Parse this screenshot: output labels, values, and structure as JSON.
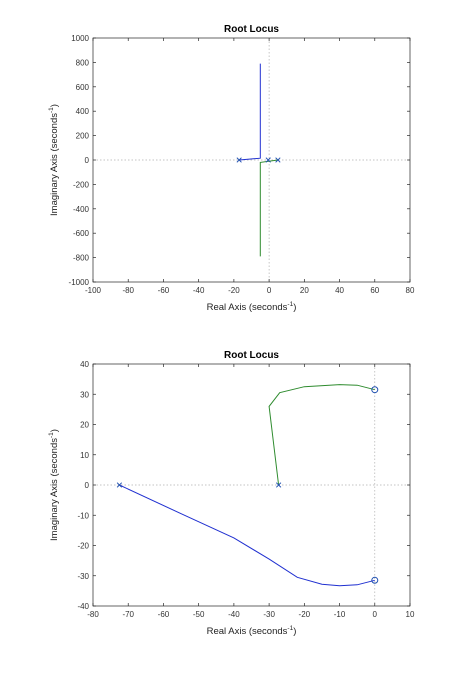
{
  "chart_data": [
    {
      "type": "line",
      "title": "Root Locus",
      "xlabel": "Real Axis (seconds",
      "ylabel": "Imaginary Axis (seconds",
      "label_exponent": "-1",
      "xlim": [
        -100,
        80
      ],
      "ylim": [
        -1000,
        1000
      ],
      "xticks": [
        -100,
        -80,
        -60,
        -40,
        -20,
        0,
        20,
        40,
        60,
        80
      ],
      "yticks": [
        -1000,
        -800,
        -600,
        -400,
        -200,
        0,
        200,
        400,
        600,
        800,
        1000
      ],
      "series": [
        {
          "color": "#1f2fd0",
          "points": [
            [
              -17,
              0
            ],
            [
              -5,
              15
            ],
            [
              -5,
              790
            ]
          ]
        },
        {
          "color": "#2e8b2e",
          "points": [
            [
              5,
              0
            ],
            [
              -5,
              -20
            ],
            [
              -5,
              -790
            ]
          ]
        }
      ],
      "poles": [
        [
          -17,
          0
        ],
        [
          5,
          0
        ],
        [
          -0.5,
          0
        ]
      ],
      "zeros": []
    },
    {
      "type": "line",
      "title": "Root Locus",
      "xlabel": "Real Axis (seconds",
      "ylabel": "Imaginary Axis (seconds",
      "label_exponent": "-1",
      "xlim": [
        -80,
        10
      ],
      "ylim": [
        -40,
        40
      ],
      "xticks": [
        -80,
        -70,
        -60,
        -50,
        -40,
        -30,
        -20,
        -10,
        0,
        10
      ],
      "yticks": [
        -40,
        -30,
        -20,
        -10,
        0,
        10,
        20,
        30,
        40
      ],
      "series": [
        {
          "color": "#1f2fd0",
          "points": [
            [
              -72.5,
              0
            ],
            [
              -55,
              -9.5
            ],
            [
              -40,
              -17.5
            ],
            [
              -30,
              -24.5
            ],
            [
              -22,
              -30.5
            ],
            [
              -15,
              -32.8
            ],
            [
              -10,
              -33.3
            ],
            [
              -5,
              -33
            ],
            [
              0,
              -31.5
            ]
          ]
        },
        {
          "color": "#2e8b2e",
          "points": [
            [
              -27.3,
              0
            ],
            [
              -30,
              26
            ],
            [
              -27,
              30.5
            ],
            [
              -20,
              32.5
            ],
            [
              -10,
              33.2
            ],
            [
              -5,
              33
            ],
            [
              0,
              31.5
            ]
          ]
        }
      ],
      "poles": [
        [
          -72.5,
          0
        ],
        [
          -27.3,
          0
        ]
      ],
      "zeros": [
        [
          0,
          31.5
        ],
        [
          0,
          -31.5
        ]
      ]
    }
  ]
}
